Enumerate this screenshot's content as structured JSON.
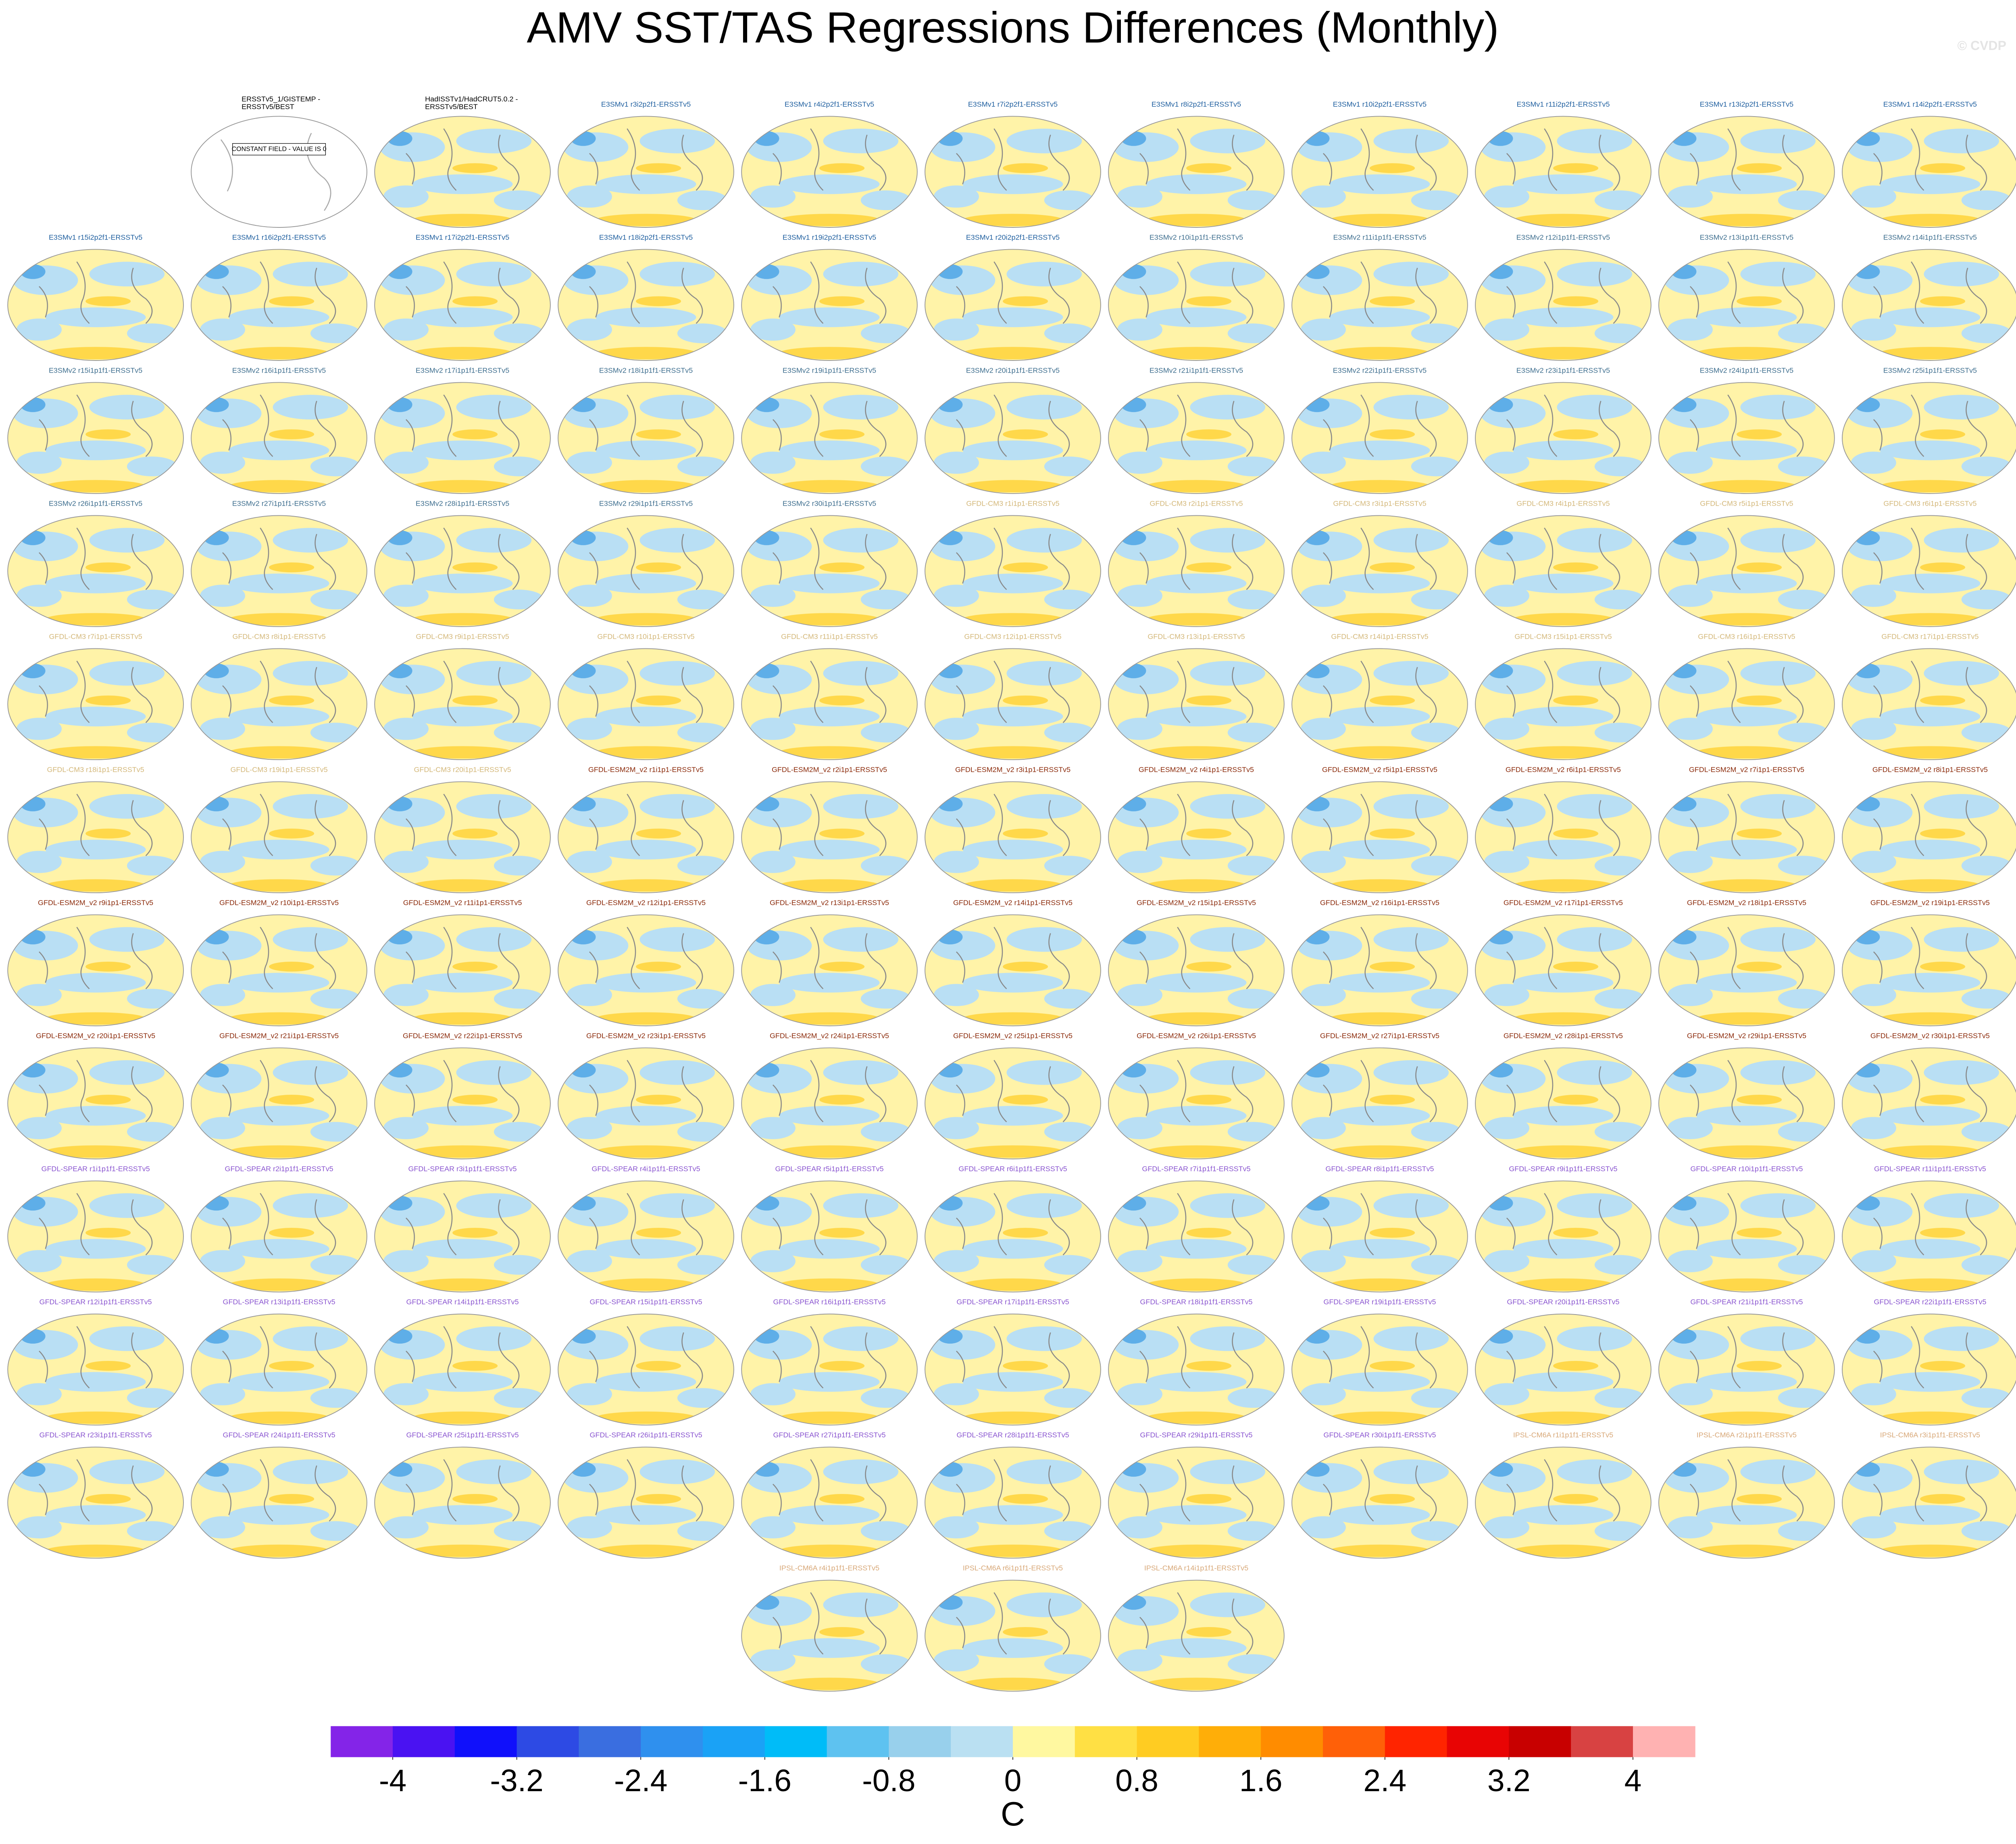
{
  "title": "AMV SST/TAS Regressions Differences (Monthly)",
  "watermark": "© CVDP",
  "constant_field_label": "CONSTANT FIELD - VALUE IS 0",
  "groups": [
    {
      "color": "#000000",
      "titles": [
        [
          "ERSSTv5_1/GISTEMP -",
          "ERSSTv5/BEST"
        ],
        [
          "HadISSTv1/HadCRUT5.0.2 -",
          "ERSSTv5/BEST"
        ]
      ]
    },
    {
      "color": "#1f5f9f",
      "titles": [
        [
          "E3SMv1 r3i2p2f1-ERSSTv5"
        ],
        [
          "E3SMv1 r4i2p2f1-ERSSTv5"
        ],
        [
          "E3SMv1 r7i2p2f1-ERSSTv5"
        ],
        [
          "E3SMv1 r8i2p2f1-ERSSTv5"
        ],
        [
          "E3SMv1 r10i2p2f1-ERSSTv5"
        ],
        [
          "E3SMv1 r11i2p2f1-ERSSTv5"
        ],
        [
          "E3SMv1 r13i2p2f1-ERSSTv5"
        ],
        [
          "E3SMv1 r14i2p2f1-ERSSTv5"
        ],
        [
          "E3SMv1 r15i2p2f1-ERSSTv5"
        ],
        [
          "E3SMv1 r16i2p2f1-ERSSTv5"
        ],
        [
          "E3SMv1 r17i2p2f1-ERSSTv5"
        ],
        [
          "E3SMv1 r18i2p2f1-ERSSTv5"
        ],
        [
          "E3SMv1 r19i2p2f1-ERSSTv5"
        ],
        [
          "E3SMv1 r20i2p2f1-ERSSTv5"
        ]
      ]
    },
    {
      "color": "#3f6f8f",
      "titles": [
        [
          "E3SMv2 r10i1p1f1-ERSSTv5"
        ],
        [
          "E3SMv2 r11i1p1f1-ERSSTv5"
        ],
        [
          "E3SMv2 r12i1p1f1-ERSSTv5"
        ],
        [
          "E3SMv2 r13i1p1f1-ERSSTv5"
        ],
        [
          "E3SMv2 r14i1p1f1-ERSSTv5"
        ],
        [
          "E3SMv2 r15i1p1f1-ERSSTv5"
        ],
        [
          "E3SMv2 r16i1p1f1-ERSSTv5"
        ],
        [
          "E3SMv2 r17i1p1f1-ERSSTv5"
        ],
        [
          "E3SMv2 r18i1p1f1-ERSSTv5"
        ],
        [
          "E3SMv2 r19i1p1f1-ERSSTv5"
        ],
        [
          "E3SMv2 r20i1p1f1-ERSSTv5"
        ],
        [
          "E3SMv2 r21i1p1f1-ERSSTv5"
        ],
        [
          "E3SMv2 r22i1p1f1-ERSSTv5"
        ],
        [
          "E3SMv2 r23i1p1f1-ERSSTv5"
        ],
        [
          "E3SMv2 r24i1p1f1-ERSSTv5"
        ],
        [
          "E3SMv2 r25i1p1f1-ERSSTv5"
        ],
        [
          "E3SMv2 r26i1p1f1-ERSSTv5"
        ],
        [
          "E3SMv2 r27i1p1f1-ERSSTv5"
        ],
        [
          "E3SMv2 r28i1p1f1-ERSSTv5"
        ],
        [
          "E3SMv2 r29i1p1f1-ERSSTv5"
        ],
        [
          "E3SMv2 r30i1p1f1-ERSSTv5"
        ]
      ]
    },
    {
      "color": "#d4b87a",
      "titles": [
        [
          "GFDL-CM3 r1i1p1-ERSSTv5"
        ],
        [
          "GFDL-CM3 r2i1p1-ERSSTv5"
        ],
        [
          "GFDL-CM3 r3i1p1-ERSSTv5"
        ],
        [
          "GFDL-CM3 r4i1p1-ERSSTv5"
        ],
        [
          "GFDL-CM3 r5i1p1-ERSSTv5"
        ],
        [
          "GFDL-CM3 r6i1p1-ERSSTv5"
        ],
        [
          "GFDL-CM3 r7i1p1-ERSSTv5"
        ],
        [
          "GFDL-CM3 r8i1p1-ERSSTv5"
        ],
        [
          "GFDL-CM3 r9i1p1-ERSSTv5"
        ],
        [
          "GFDL-CM3 r10i1p1-ERSSTv5"
        ],
        [
          "GFDL-CM3 r11i1p1-ERSSTv5"
        ],
        [
          "GFDL-CM3 r12i1p1-ERSSTv5"
        ],
        [
          "GFDL-CM3 r13i1p1-ERSSTv5"
        ],
        [
          "GFDL-CM3 r14i1p1-ERSSTv5"
        ],
        [
          "GFDL-CM3 r15i1p1-ERSSTv5"
        ],
        [
          "GFDL-CM3 r16i1p1-ERSSTv5"
        ],
        [
          "GFDL-CM3 r17i1p1-ERSSTv5"
        ],
        [
          "GFDL-CM3 r18i1p1-ERSSTv5"
        ],
        [
          "GFDL-CM3 r19i1p1-ERSSTv5"
        ],
        [
          "GFDL-CM3 r20i1p1-ERSSTv5"
        ]
      ]
    },
    {
      "color": "#8b2a0a",
      "titles": [
        [
          "GFDL-ESM2M_v2 r1i1p1-ERSSTv5"
        ],
        [
          "GFDL-ESM2M_v2 r2i1p1-ERSSTv5"
        ],
        [
          "GFDL-ESM2M_v2 r3i1p1-ERSSTv5"
        ],
        [
          "GFDL-ESM2M_v2 r4i1p1-ERSSTv5"
        ],
        [
          "GFDL-ESM2M_v2 r5i1p1-ERSSTv5"
        ],
        [
          "GFDL-ESM2M_v2 r6i1p1-ERSSTv5"
        ],
        [
          "GFDL-ESM2M_v2 r7i1p1-ERSSTv5"
        ],
        [
          "GFDL-ESM2M_v2 r8i1p1-ERSSTv5"
        ],
        [
          "GFDL-ESM2M_v2 r9i1p1-ERSSTv5"
        ],
        [
          "GFDL-ESM2M_v2 r10i1p1-ERSSTv5"
        ],
        [
          "GFDL-ESM2M_v2 r11i1p1-ERSSTv5"
        ],
        [
          "GFDL-ESM2M_v2 r12i1p1-ERSSTv5"
        ],
        [
          "GFDL-ESM2M_v2 r13i1p1-ERSSTv5"
        ],
        [
          "GFDL-ESM2M_v2 r14i1p1-ERSSTv5"
        ],
        [
          "GFDL-ESM2M_v2 r15i1p1-ERSSTv5"
        ],
        [
          "GFDL-ESM2M_v2 r16i1p1-ERSSTv5"
        ],
        [
          "GFDL-ESM2M_v2 r17i1p1-ERSSTv5"
        ],
        [
          "GFDL-ESM2M_v2 r18i1p1-ERSSTv5"
        ],
        [
          "GFDL-ESM2M_v2 r19i1p1-ERSSTv5"
        ],
        [
          "GFDL-ESM2M_v2 r20i1p1-ERSSTv5"
        ],
        [
          "GFDL-ESM2M_v2 r21i1p1-ERSSTv5"
        ],
        [
          "GFDL-ESM2M_v2 r22i1p1-ERSSTv5"
        ],
        [
          "GFDL-ESM2M_v2 r23i1p1-ERSSTv5"
        ],
        [
          "GFDL-ESM2M_v2 r24i1p1-ERSSTv5"
        ],
        [
          "GFDL-ESM2M_v2 r25i1p1-ERSSTv5"
        ],
        [
          "GFDL-ESM2M_v2 r26i1p1-ERSSTv5"
        ],
        [
          "GFDL-ESM2M_v2 r27i1p1-ERSSTv5"
        ],
        [
          "GFDL-ESM2M_v2 r28i1p1-ERSSTv5"
        ],
        [
          "GFDL-ESM2M_v2 r29i1p1-ERSSTv5"
        ],
        [
          "GFDL-ESM2M_v2 r30i1p1-ERSSTv5"
        ]
      ]
    },
    {
      "color": "#8a55d0",
      "titles": [
        [
          "GFDL-SPEAR r1i1p1f1-ERSSTv5"
        ],
        [
          "GFDL-SPEAR r2i1p1f1-ERSSTv5"
        ],
        [
          "GFDL-SPEAR r3i1p1f1-ERSSTv5"
        ],
        [
          "GFDL-SPEAR r4i1p1f1-ERSSTv5"
        ],
        [
          "GFDL-SPEAR r5i1p1f1-ERSSTv5"
        ],
        [
          "GFDL-SPEAR r6i1p1f1-ERSSTv5"
        ],
        [
          "GFDL-SPEAR r7i1p1f1-ERSSTv5"
        ],
        [
          "GFDL-SPEAR r8i1p1f1-ERSSTv5"
        ],
        [
          "GFDL-SPEAR r9i1p1f1-ERSSTv5"
        ],
        [
          "GFDL-SPEAR r10i1p1f1-ERSSTv5"
        ],
        [
          "GFDL-SPEAR r11i1p1f1-ERSSTv5"
        ],
        [
          "GFDL-SPEAR r12i1p1f1-ERSSTv5"
        ],
        [
          "GFDL-SPEAR r13i1p1f1-ERSSTv5"
        ],
        [
          "GFDL-SPEAR r14i1p1f1-ERSSTv5"
        ],
        [
          "GFDL-SPEAR r15i1p1f1-ERSSTv5"
        ],
        [
          "GFDL-SPEAR r16i1p1f1-ERSSTv5"
        ],
        [
          "GFDL-SPEAR r17i1p1f1-ERSSTv5"
        ],
        [
          "GFDL-SPEAR r18i1p1f1-ERSSTv5"
        ],
        [
          "GFDL-SPEAR r19i1p1f1-ERSSTv5"
        ],
        [
          "GFDL-SPEAR r20i1p1f1-ERSSTv5"
        ],
        [
          "GFDL-SPEAR r21i1p1f1-ERSSTv5"
        ],
        [
          "GFDL-SPEAR r22i1p1f1-ERSSTv5"
        ],
        [
          "GFDL-SPEAR r23i1p1f1-ERSSTv5"
        ],
        [
          "GFDL-SPEAR r24i1p1f1-ERSSTv5"
        ],
        [
          "GFDL-SPEAR r25i1p1f1-ERSSTv5"
        ],
        [
          "GFDL-SPEAR r26i1p1f1-ERSSTv5"
        ],
        [
          "GFDL-SPEAR r27i1p1f1-ERSSTv5"
        ],
        [
          "GFDL-SPEAR r28i1p1f1-ERSSTv5"
        ],
        [
          "GFDL-SPEAR r29i1p1f1-ERSSTv5"
        ],
        [
          "GFDL-SPEAR r30i1p1f1-ERSSTv5"
        ]
      ]
    },
    {
      "color": "#d8a878",
      "titles": [
        [
          "IPSL-CM6A r1i1p1f1-ERSSTv5"
        ],
        [
          "IPSL-CM6A r2i1p1f1-ERSSTv5"
        ],
        [
          "IPSL-CM6A r3i1p1f1-ERSSTv5"
        ],
        [
          "IPSL-CM6A r4i1p1f1-ERSSTv5"
        ],
        [
          "IPSL-CM6A r6i1p1f1-ERSSTv5"
        ],
        [
          "IPSL-CM6A r14i1p1f1-ERSSTv5"
        ]
      ]
    }
  ],
  "colorbar": {
    "label": "C",
    "xlim": [
      -4.4,
      4.4
    ],
    "ticks": [
      -4,
      -3.2,
      -2.4,
      -1.6,
      -0.8,
      0,
      0.8,
      1.6,
      2.4,
      3.2,
      4
    ],
    "colors": [
      "#8424e8",
      "#4a12f2",
      "#1010fb",
      "#2d4ae4",
      "#3a6ee0",
      "#2f90ee",
      "#1aa2f6",
      "#00bcf8",
      "#5ec2f0",
      "#98d0ec",
      "#bae0f2",
      "#fff8a0",
      "#ffe044",
      "#ffcc22",
      "#ffae08",
      "#ff8c00",
      "#ff6008",
      "#ff2400",
      "#e80404",
      "#c80000",
      "#d84242",
      "#ffb2b2"
    ]
  }
}
